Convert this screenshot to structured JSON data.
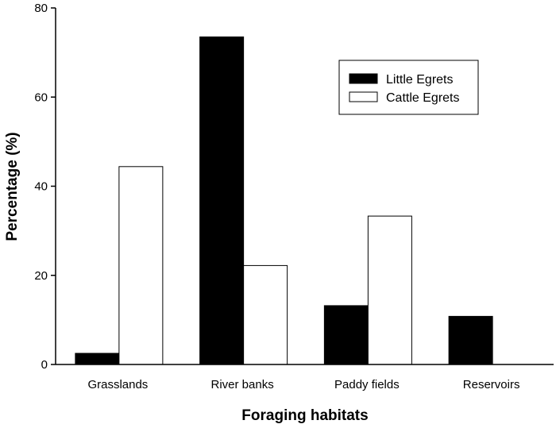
{
  "chart_data": {
    "type": "bar",
    "title": "",
    "xlabel": "Foraging habitats",
    "ylabel": "Percentage (%)",
    "categories": [
      "Grasslands",
      "River banks",
      "Paddy fields",
      "Reservoirs"
    ],
    "series": [
      {
        "name": "Little Egrets",
        "values": [
          2.5,
          73.5,
          13.2,
          10.8
        ],
        "color": "#000000"
      },
      {
        "name": "Cattle Egrets",
        "values": [
          44.4,
          22.2,
          33.3,
          0
        ],
        "color": "#ffffff"
      }
    ],
    "ylim": [
      0,
      80
    ],
    "yticks": [
      0,
      20,
      40,
      60,
      80
    ],
    "legend": "top-right",
    "grid": false
  }
}
